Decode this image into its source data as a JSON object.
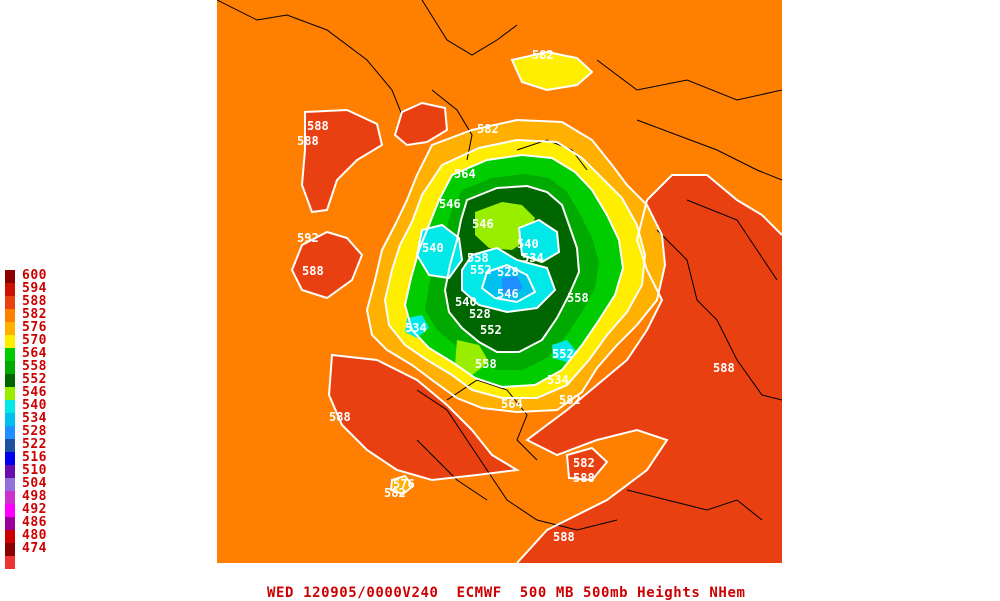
{
  "legend": {
    "levels": [
      {
        "label": "600",
        "color": "#8b0000"
      },
      {
        "label": "594",
        "color": "#cc1100"
      },
      {
        "label": "588",
        "color": "#e84010"
      },
      {
        "label": "582",
        "color": "#ff7f00"
      },
      {
        "label": "576",
        "color": "#ffb000"
      },
      {
        "label": "570",
        "color": "#ffee00"
      },
      {
        "label": "564",
        "color": "#00cc00"
      },
      {
        "label": "558",
        "color": "#00aa00"
      },
      {
        "label": "552",
        "color": "#006600"
      },
      {
        "label": "546",
        "color": "#99ee00"
      },
      {
        "label": "540",
        "color": "#00e8e8"
      },
      {
        "label": "534",
        "color": "#00c0ee"
      },
      {
        "label": "528",
        "color": "#1e90ff"
      },
      {
        "label": "522",
        "color": "#1f4fa0"
      },
      {
        "label": "516",
        "color": "#0000ee"
      },
      {
        "label": "510",
        "color": "#6a0dad"
      },
      {
        "label": "504",
        "color": "#9370db"
      },
      {
        "label": "498",
        "color": "#cc33cc"
      },
      {
        "label": "492",
        "color": "#ff00ff"
      },
      {
        "label": "486",
        "color": "#990099"
      },
      {
        "label": "480",
        "color": "#cc0000"
      },
      {
        "label": "474",
        "color": "#880000"
      },
      {
        "label": "",
        "color": "#ee3333"
      }
    ]
  },
  "caption": "WED 120905/0000V240  ECMWF  500 MB 500mb Heights NHem",
  "map": {
    "contour_labels": [
      "588",
      "582",
      "592",
      "588",
      "582",
      "564",
      "546",
      "546",
      "540",
      "558",
      "552",
      "540",
      "534",
      "528",
      "546",
      "540",
      "528",
      "552",
      "534",
      "558",
      "558",
      "552",
      "534",
      "582",
      "564",
      "588",
      "588",
      "582",
      "588",
      "576",
      "582",
      "588",
      "588"
    ]
  }
}
